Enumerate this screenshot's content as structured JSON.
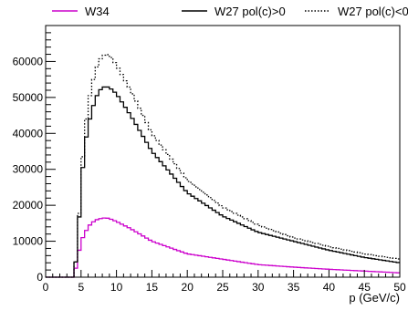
{
  "chart_data": {
    "type": "line",
    "title": "",
    "xlabel": "p (GeV/c)",
    "ylabel": "",
    "xlim": [
      0,
      50
    ],
    "ylim": [
      0,
      70000
    ],
    "xticks": [
      0,
      5,
      10,
      15,
      20,
      25,
      30,
      35,
      40,
      45,
      50
    ],
    "xtick_labels": [
      "0",
      "5",
      "10",
      "15",
      "20",
      "25",
      "30",
      "35",
      "40",
      "45",
      "50"
    ],
    "yticks": [
      0,
      10000,
      20000,
      30000,
      40000,
      50000,
      60000
    ],
    "ytick_labels": [
      "0",
      "10000",
      "20000",
      "30000",
      "40000",
      "50000",
      "60000"
    ],
    "grid": false,
    "legend_position": "top",
    "series": [
      {
        "name": "W34",
        "color": "#cc00cc",
        "dash": "solid",
        "x": [
          0,
          4,
          4.5,
          5,
          5.5,
          6,
          6.5,
          7,
          7.5,
          8,
          8.5,
          9,
          10,
          12,
          15,
          20,
          25,
          30,
          35,
          40,
          45,
          50
        ],
        "y": [
          0,
          0,
          5000,
          10000,
          12000,
          14000,
          15000,
          15800,
          16200,
          16400,
          16500,
          16300,
          15500,
          13500,
          10000,
          6500,
          5000,
          3500,
          2800,
          2200,
          1700,
          1200
        ]
      },
      {
        "name": "W27 pol(c)>0",
        "color": "#000000",
        "dash": "solid",
        "x": [
          0,
          4,
          4.5,
          5,
          5.5,
          6,
          6.5,
          7,
          7.5,
          8,
          8.5,
          9,
          10,
          12,
          15,
          20,
          25,
          30,
          35,
          40,
          45,
          50
        ],
        "y": [
          0,
          0,
          8500,
          25000,
          36000,
          42000,
          46000,
          49500,
          51500,
          52800,
          53000,
          52800,
          51000,
          45000,
          35000,
          23500,
          17000,
          12500,
          10000,
          7500,
          5500,
          4000
        ]
      },
      {
        "name": "W27 pol(c)<0",
        "color": "#000000",
        "dash": "dotted",
        "x": [
          0,
          4,
          4.5,
          5,
          5.5,
          6,
          6.5,
          7,
          7.5,
          8,
          8.5,
          9,
          10,
          12,
          15,
          20,
          25,
          30,
          35,
          40,
          45,
          50
        ],
        "y": [
          0,
          0,
          8500,
          27000,
          40000,
          48000,
          53000,
          57000,
          60000,
          61500,
          62000,
          61800,
          59000,
          52000,
          40000,
          27000,
          19500,
          14500,
          11000,
          8500,
          6500,
          5000
        ]
      }
    ]
  }
}
